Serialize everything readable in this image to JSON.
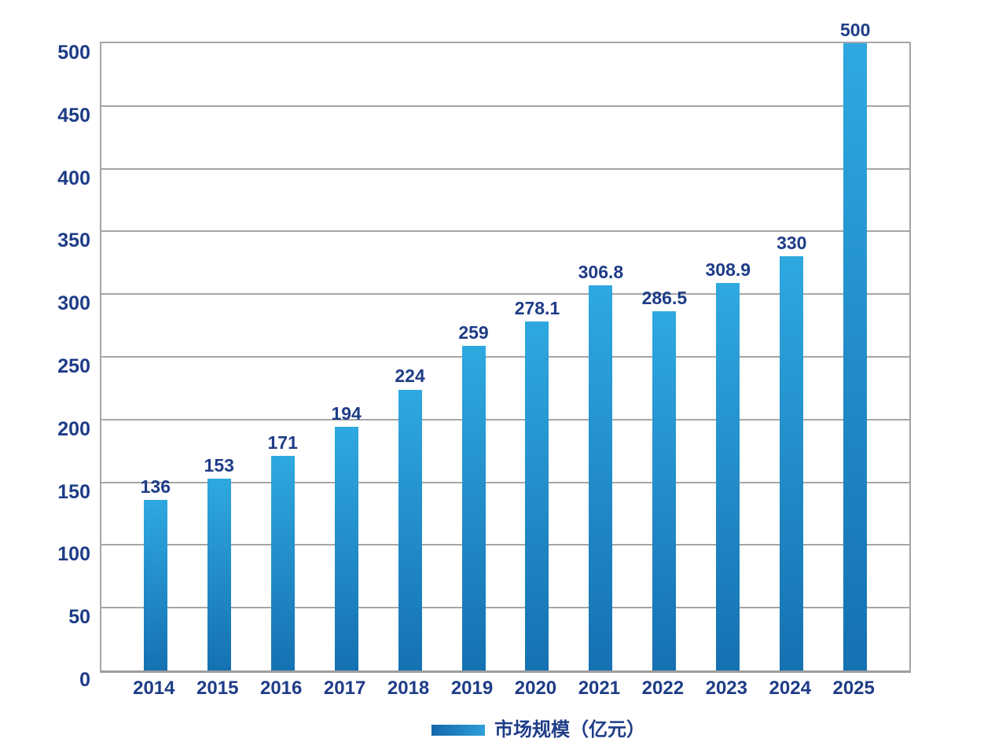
{
  "chart_data": {
    "type": "bar",
    "title": "",
    "xlabel": "",
    "ylabel": "",
    "categories": [
      "2014",
      "2015",
      "2016",
      "2017",
      "2018",
      "2019",
      "2020",
      "2021",
      "2022",
      "2023",
      "2024",
      "2025"
    ],
    "values": [
      136,
      153,
      171,
      194,
      224,
      259,
      278.1,
      306.8,
      286.5,
      308.9,
      330,
      500
    ],
    "value_labels": [
      "136",
      "153",
      "171",
      "194",
      "224",
      "259",
      "278.1",
      "306.8",
      "286.5",
      "308.9",
      "330",
      "500"
    ],
    "ylim": [
      0,
      500
    ],
    "yticks": [
      0,
      50,
      100,
      150,
      200,
      250,
      300,
      350,
      400,
      450,
      500
    ],
    "grid": true,
    "legend_position": "bottom",
    "legend": [
      {
        "label": "市场规模（亿元）"
      }
    ],
    "colors": {
      "bar_gradient_top": "#2fa8e0",
      "bar_gradient_bottom": "#1571b2",
      "legend_gradient_left": "#1467ab",
      "legend_gradient_right": "#2f9fd9",
      "text": "#1e3c87",
      "gridline": "#a6a6a6",
      "background": "#ffffff"
    }
  }
}
